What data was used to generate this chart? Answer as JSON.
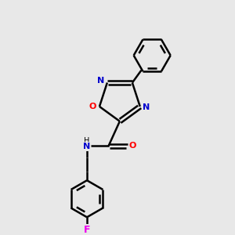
{
  "background_color": "#e8e8e8",
  "bond_color": "#000000",
  "N_color": "#0000cd",
  "O_color": "#ff0000",
  "F_color": "#ee00ee",
  "figsize": [
    3.0,
    3.0
  ],
  "dpi": 100,
  "xlim": [
    0,
    10
  ],
  "ylim": [
    0,
    10
  ]
}
